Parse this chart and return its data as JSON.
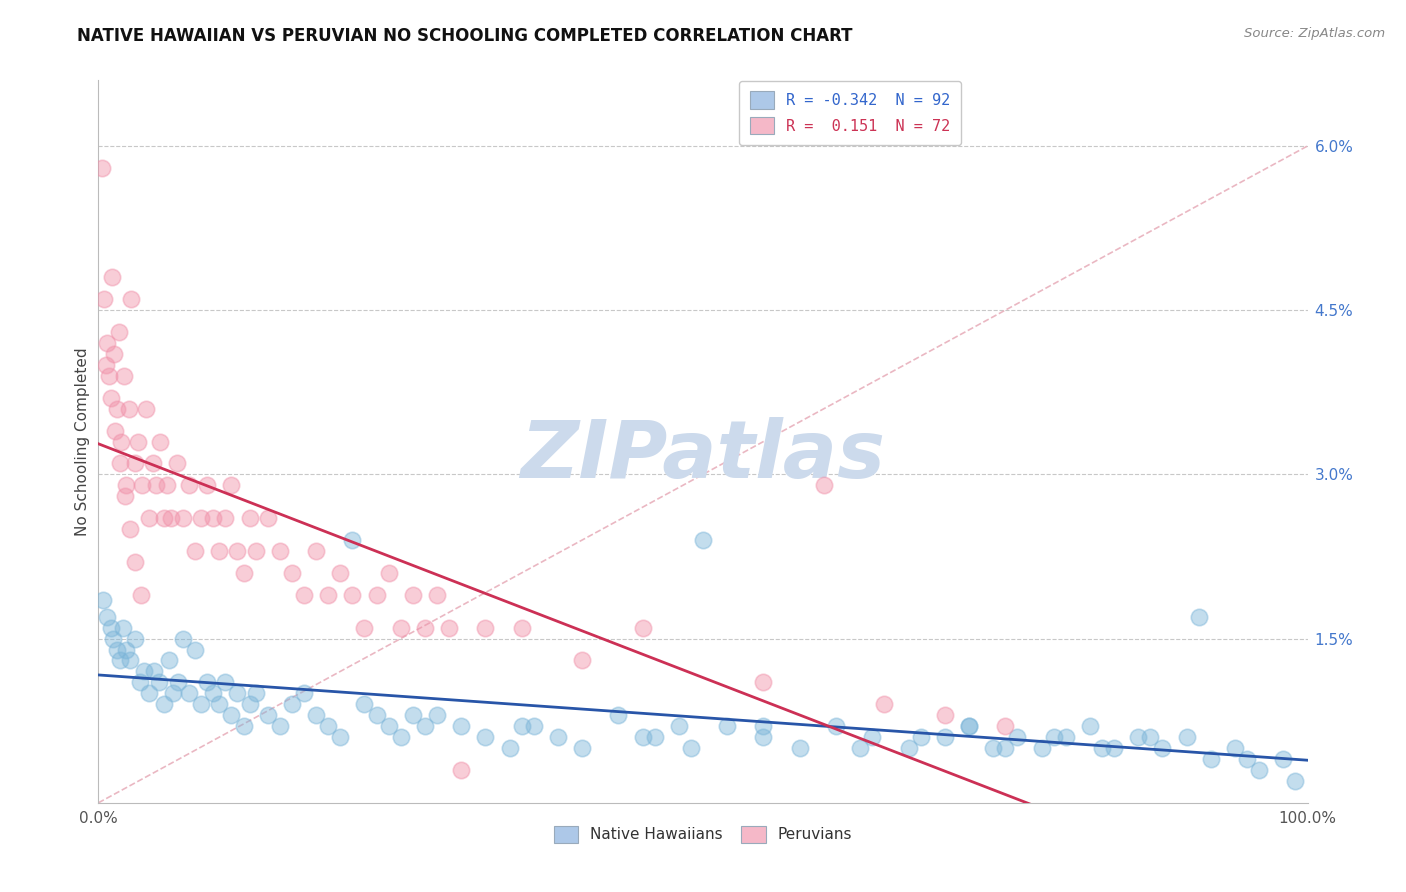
{
  "title": "NATIVE HAWAIIAN VS PERUVIAN NO SCHOOLING COMPLETED CORRELATION CHART",
  "source": "Source: ZipAtlas.com",
  "ylabel": "No Schooling Completed",
  "xlim": [
    0.0,
    100.0
  ],
  "ylim": [
    0.0,
    6.6
  ],
  "yticks": [
    0.0,
    1.5,
    3.0,
    4.5,
    6.0
  ],
  "ytick_labels": [
    "",
    "1.5%",
    "3.0%",
    "4.5%",
    "6.0%"
  ],
  "native_hawaiian_color": "#7ab4d8",
  "peruvian_color": "#f090a8",
  "trend_native_color": "#2855a8",
  "trend_peruvian_color": "#cc3055",
  "diag_line_color": "#e8b0bc",
  "watermark_color": "#ccdaec",
  "native_hawaiian_R": -0.342,
  "native_hawaiian_N": 92,
  "peruvian_R": 0.151,
  "peruvian_N": 72,
  "legend1_label": "R = -0.342  N = 92",
  "legend2_label": "R =  0.151  N = 72",
  "legend_color1": "#adc8e8",
  "legend_color2": "#f5b8c8",
  "bottom_legend1": "Native Hawaiians",
  "bottom_legend2": "Peruvians",
  "nh_x": [
    0.4,
    0.7,
    1.0,
    1.2,
    1.5,
    1.8,
    2.0,
    2.3,
    2.6,
    3.0,
    3.4,
    3.8,
    4.2,
    4.6,
    5.0,
    5.4,
    5.8,
    6.2,
    6.6,
    7.0,
    7.5,
    8.0,
    8.5,
    9.0,
    9.5,
    10.0,
    10.5,
    11.0,
    11.5,
    12.0,
    12.5,
    13.0,
    14.0,
    15.0,
    16.0,
    17.0,
    18.0,
    19.0,
    20.0,
    21.0,
    22.0,
    23.0,
    24.0,
    25.0,
    26.0,
    27.0,
    28.0,
    30.0,
    32.0,
    34.0,
    36.0,
    38.0,
    40.0,
    43.0,
    46.0,
    49.0,
    52.0,
    55.0,
    58.0,
    61.0,
    64.0,
    67.0,
    70.0,
    72.0,
    74.0,
    76.0,
    78.0,
    80.0,
    82.0,
    84.0,
    86.0,
    88.0,
    90.0,
    92.0,
    94.0,
    96.0,
    98.0,
    50.0,
    35.0,
    45.0,
    55.0,
    63.0,
    68.0,
    72.0,
    75.0,
    79.0,
    83.0,
    87.0,
    91.0,
    95.0,
    99.0,
    48.0
  ],
  "nh_y": [
    1.85,
    1.7,
    1.6,
    1.5,
    1.4,
    1.3,
    1.6,
    1.4,
    1.3,
    1.5,
    1.1,
    1.2,
    1.0,
    1.2,
    1.1,
    0.9,
    1.3,
    1.0,
    1.1,
    1.5,
    1.0,
    1.4,
    0.9,
    1.1,
    1.0,
    0.9,
    1.1,
    0.8,
    1.0,
    0.7,
    0.9,
    1.0,
    0.8,
    0.7,
    0.9,
    1.0,
    0.8,
    0.7,
    0.6,
    2.4,
    0.9,
    0.8,
    0.7,
    0.6,
    0.8,
    0.7,
    0.8,
    0.7,
    0.6,
    0.5,
    0.7,
    0.6,
    0.5,
    0.8,
    0.6,
    0.5,
    0.7,
    0.6,
    0.5,
    0.7,
    0.6,
    0.5,
    0.6,
    0.7,
    0.5,
    0.6,
    0.5,
    0.6,
    0.7,
    0.5,
    0.6,
    0.5,
    0.6,
    0.4,
    0.5,
    0.3,
    0.4,
    2.4,
    0.7,
    0.6,
    0.7,
    0.5,
    0.6,
    0.7,
    0.5,
    0.6,
    0.5,
    0.6,
    1.7,
    0.4,
    0.2,
    0.7
  ],
  "peru_x": [
    0.3,
    0.5,
    0.7,
    0.9,
    1.1,
    1.3,
    1.5,
    1.7,
    1.9,
    2.1,
    2.3,
    2.5,
    2.7,
    3.0,
    3.3,
    3.6,
    3.9,
    4.2,
    4.5,
    4.8,
    5.1,
    5.4,
    5.7,
    6.0,
    6.5,
    7.0,
    7.5,
    8.0,
    8.5,
    9.0,
    9.5,
    10.0,
    10.5,
    11.0,
    11.5,
    12.0,
    12.5,
    13.0,
    14.0,
    15.0,
    16.0,
    17.0,
    18.0,
    19.0,
    20.0,
    21.0,
    22.0,
    23.0,
    24.0,
    25.0,
    26.0,
    27.0,
    28.0,
    29.0,
    30.0,
    32.0,
    35.0,
    40.0,
    45.0,
    55.0,
    60.0,
    65.0,
    70.0,
    75.0,
    0.6,
    1.0,
    1.4,
    1.8,
    2.2,
    2.6,
    3.0,
    3.5
  ],
  "peru_y": [
    5.8,
    4.6,
    4.2,
    3.9,
    4.8,
    4.1,
    3.6,
    4.3,
    3.3,
    3.9,
    2.9,
    3.6,
    4.6,
    3.1,
    3.3,
    2.9,
    3.6,
    2.6,
    3.1,
    2.9,
    3.3,
    2.6,
    2.9,
    2.6,
    3.1,
    2.6,
    2.9,
    2.3,
    2.6,
    2.9,
    2.6,
    2.3,
    2.6,
    2.9,
    2.3,
    2.1,
    2.6,
    2.3,
    2.6,
    2.3,
    2.1,
    1.9,
    2.3,
    1.9,
    2.1,
    1.9,
    1.6,
    1.9,
    2.1,
    1.6,
    1.9,
    1.6,
    1.9,
    1.6,
    0.3,
    1.6,
    1.6,
    1.3,
    1.6,
    1.1,
    2.9,
    0.9,
    0.8,
    0.7,
    4.0,
    3.7,
    3.4,
    3.1,
    2.8,
    2.5,
    2.2,
    1.9
  ]
}
